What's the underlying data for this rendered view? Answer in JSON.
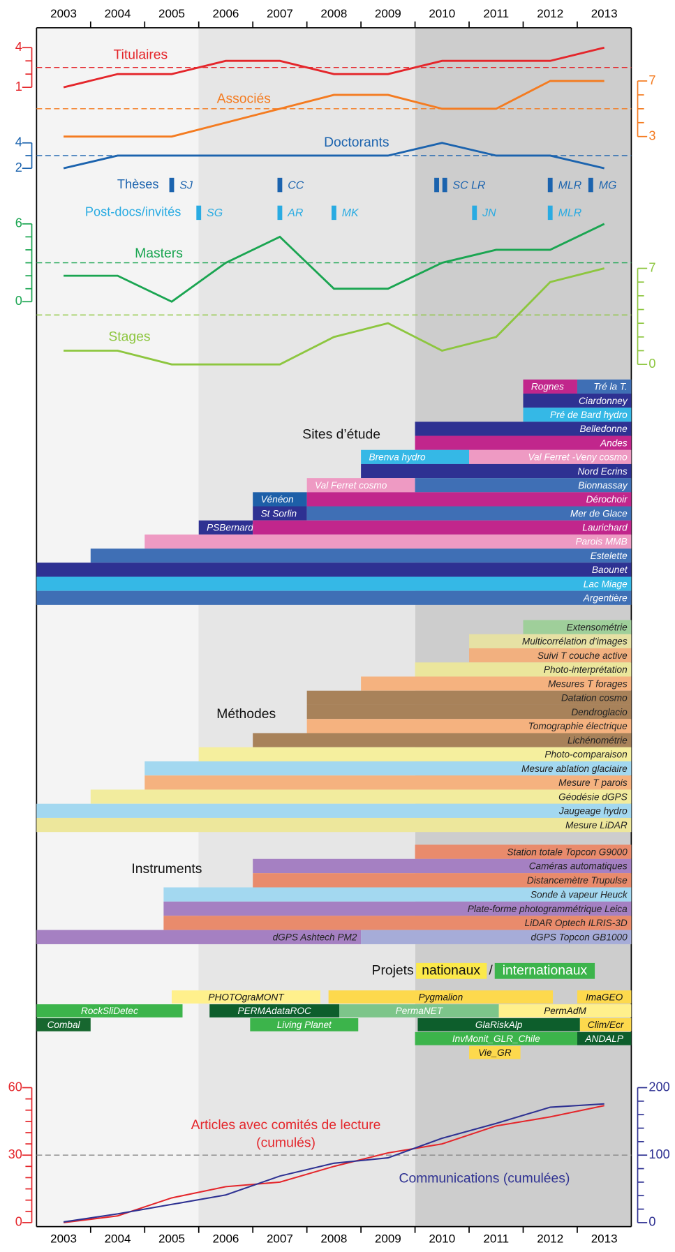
{
  "xaxis": {
    "xlim": [
      2002.5,
      2013.5
    ],
    "xticks": [
      2003,
      2004,
      2005,
      2006,
      2007,
      2008,
      2009,
      2010,
      2011,
      2012,
      2013
    ]
  },
  "staff": [
    {
      "name": "Titulaires",
      "color": "#e4262b",
      "axis": "left",
      "ylim": [
        1,
        4
      ],
      "yticks": [
        1,
        4
      ],
      "minor_yticks": [
        2,
        3
      ],
      "reference": 2.5,
      "values": [
        1,
        2,
        2,
        3,
        3,
        2,
        2,
        3,
        3,
        3,
        4
      ]
    },
    {
      "name": "Associés",
      "color": "#f47b20",
      "axis": "right",
      "ylim": [
        3,
        7
      ],
      "yticks": [
        3,
        7
      ],
      "minor_yticks": [
        4,
        5,
        6
      ],
      "reference": 5,
      "values": [
        3,
        3,
        3,
        4,
        5,
        6,
        6,
        5,
        5,
        7,
        7
      ]
    },
    {
      "name": "Doctorants",
      "color": "#1b63ae",
      "axis": "left",
      "ylim": [
        2,
        4
      ],
      "yticks": [
        2,
        4
      ],
      "minor_yticks": [
        3
      ],
      "reference": 3,
      "values": [
        2,
        3,
        3,
        3,
        3,
        3,
        3,
        4,
        3,
        3,
        2
      ]
    },
    {
      "name": "Masters",
      "color": "#1aa551",
      "axis": "left",
      "ylim": [
        0,
        6
      ],
      "yticks": [
        0,
        6
      ],
      "minor_yticks": [
        1,
        2,
        3,
        4,
        5
      ],
      "reference": 3,
      "values": [
        2,
        2,
        0,
        3,
        5,
        1,
        1,
        3,
        4,
        4,
        6
      ]
    },
    {
      "name": "Stages",
      "color": "#8dc63f",
      "axis": "right",
      "ylim": [
        0,
        7
      ],
      "yticks": [
        0,
        7
      ],
      "minor_yticks": [
        1,
        2,
        3,
        4,
        5,
        6
      ],
      "reference": 3.6,
      "values": [
        1,
        1,
        0,
        0,
        0,
        2,
        3,
        1,
        2,
        6,
        7
      ]
    }
  ],
  "markers": [
    {
      "name": "Thèses",
      "color": "#1b63ae",
      "items": [
        {
          "label": "SJ",
          "x": [
            2005
          ]
        },
        {
          "label": "CC",
          "x": [
            2007
          ]
        },
        {
          "label": "SC LR",
          "x": [
            2009.9,
            2010.05
          ]
        },
        {
          "label": "MLR",
          "x": [
            2012
          ]
        },
        {
          "label": "MG",
          "x": [
            2012.75
          ]
        }
      ]
    },
    {
      "name": "Post-docs/invités",
      "color": "#29abe2",
      "items": [
        {
          "label": "SG",
          "x": [
            2005.5
          ]
        },
        {
          "label": "AR",
          "x": [
            2007
          ]
        },
        {
          "label": "MK",
          "x": [
            2008
          ]
        },
        {
          "label": "JN",
          "x": [
            2010.6
          ]
        },
        {
          "label": "MLR",
          "x": [
            2012
          ]
        }
      ]
    }
  ],
  "sites": {
    "title": "Sites d’étude",
    "rows": [
      [
        {
          "label": "Rognes",
          "start": 2011.5,
          "end": 2012.5,
          "color": "#c1268c"
        },
        {
          "label": "Tré la T.",
          "start": 2012.5,
          "end": 2013.5,
          "color": "#3f6fb5"
        }
      ],
      [
        {
          "label": "Ciardonney",
          "start": 2011.5,
          "end": 2013.5,
          "color": "#2e3192"
        }
      ],
      [
        {
          "label": "Pré de Bard hydro",
          "start": 2011.5,
          "end": 2013.5,
          "color": "#35b8e6"
        }
      ],
      [
        {
          "label": "Belledonne",
          "start": 2009.5,
          "end": 2013.5,
          "color": "#2e3192"
        }
      ],
      [
        {
          "label": "Andes",
          "start": 2009.5,
          "end": 2013.5,
          "color": "#c1268c"
        }
      ],
      [
        {
          "label": "Brenva hydro",
          "start": 2008.5,
          "end": 2010.5,
          "color": "#35b8e6"
        },
        {
          "label": "Val Ferret -Veny cosmo",
          "start": 2010.5,
          "end": 2013.5,
          "color": "#ee9ac3"
        }
      ],
      [
        {
          "label": "Nord Ecrins",
          "start": 2008.5,
          "end": 2013.5,
          "color": "#2e3192"
        }
      ],
      [
        {
          "label": "Val Ferret cosmo",
          "start": 2007.5,
          "end": 2009.5,
          "color": "#ee9ac3"
        },
        {
          "label": "Bionnassay",
          "start": 2009.5,
          "end": 2013.5,
          "color": "#3f6fb5"
        }
      ],
      [
        {
          "label": "Vénéon",
          "start": 2006.5,
          "end": 2007.5,
          "color": "#1d5fa8"
        },
        {
          "label": "Dérochoir",
          "start": 2007.5,
          "end": 2013.5,
          "color": "#c1268c"
        }
      ],
      [
        {
          "label": "St Sorlin",
          "start": 2006.5,
          "end": 2007.5,
          "color": "#2e3192"
        },
        {
          "label": "Mer de Glace",
          "start": 2007.5,
          "end": 2013.5,
          "color": "#3f6fb5"
        }
      ],
      [
        {
          "label": "PSBernard",
          "start": 2005.5,
          "end": 2006.5,
          "color": "#2e3192"
        },
        {
          "label": "Laurichard",
          "start": 2006.5,
          "end": 2013.5,
          "color": "#c1268c"
        }
      ],
      [
        {
          "label": "Parois MMB",
          "start": 2004.5,
          "end": 2013.5,
          "color": "#ee9ac3"
        }
      ],
      [
        {
          "label": "Estelette",
          "start": 2003.5,
          "end": 2013.5,
          "color": "#3f6fb5"
        }
      ],
      [
        {
          "label": "Baounet",
          "start": 2002.5,
          "end": 2013.5,
          "color": "#2e3192"
        }
      ],
      [
        {
          "label": "Lac Miage",
          "start": 2002.5,
          "end": 2013.5,
          "color": "#35b8e6"
        }
      ],
      [
        {
          "label": "Argentière",
          "start": 2002.5,
          "end": 2013.5,
          "color": "#3f6fb5"
        }
      ]
    ]
  },
  "methods": {
    "title": "Méthodes",
    "rows": [
      [
        {
          "label": "Extensométrie",
          "start": 2011.5,
          "end": 2013.5,
          "color": "#9fcf9a"
        }
      ],
      [
        {
          "label": "Multicorrélation d’images",
          "start": 2010.5,
          "end": 2013.5,
          "color": "#e6e1a4"
        }
      ],
      [
        {
          "label": "Suivi T couche active",
          "start": 2010.5,
          "end": 2013.5,
          "color": "#f2b07f"
        }
      ],
      [
        {
          "label": "Photo-interprétation",
          "start": 2009.5,
          "end": 2013.5,
          "color": "#ebe69c"
        }
      ],
      [
        {
          "label": "Mesures T forages",
          "start": 2008.5,
          "end": 2013.5,
          "color": "#f5b27f"
        }
      ],
      [
        {
          "label": "Datation cosmo",
          "start": 2007.5,
          "end": 2013.5,
          "color": "#a8825a"
        }
      ],
      [
        {
          "label": "Dendroglacio",
          "start": 2007.5,
          "end": 2013.5,
          "color": "#a8825a"
        }
      ],
      [
        {
          "label": "Tomographie électrique",
          "start": 2007.5,
          "end": 2013.5,
          "color": "#f5b27f"
        }
      ],
      [
        {
          "label": "Lichénométrie",
          "start": 2006.5,
          "end": 2013.5,
          "color": "#a8825a"
        }
      ],
      [
        {
          "label": "Photo-comparaison",
          "start": 2005.5,
          "end": 2013.5,
          "color": "#f5ef9e"
        }
      ],
      [
        {
          "label": "Mesure ablation glaciaire",
          "start": 2004.5,
          "end": 2013.5,
          "color": "#a3d8f0"
        }
      ],
      [
        {
          "label": "Mesure T parois",
          "start": 2004.5,
          "end": 2013.5,
          "color": "#f5b27f"
        }
      ],
      [
        {
          "label": "Géodésie dGPS",
          "start": 2003.5,
          "end": 2013.5,
          "color": "#f2ec9e"
        }
      ],
      [
        {
          "label": "Jaugeage hydro",
          "start": 2002.5,
          "end": 2013.5,
          "color": "#a3d8f0"
        }
      ],
      [
        {
          "label": "Mesure LiDAR",
          "start": 2002.5,
          "end": 2013.5,
          "color": "#ede79c"
        }
      ]
    ]
  },
  "instruments": {
    "title": "Instruments",
    "rows": [
      [
        {
          "label": "Station totale Topcon G9000",
          "start": 2009.5,
          "end": 2013.5,
          "color": "#e98b6c"
        }
      ],
      [
        {
          "label": "Caméras automatiques",
          "start": 2006.5,
          "end": 2013.5,
          "color": "#a580c2"
        }
      ],
      [
        {
          "label": "Distancemètre Trupulse",
          "start": 2006.5,
          "end": 2013.5,
          "color": "#e98b6c"
        }
      ],
      [
        {
          "label": "Sonde à vapeur Heuck",
          "start": 2004.85,
          "end": 2013.5,
          "color": "#a3d8f0"
        }
      ],
      [
        {
          "label": "Plate-forme photogrammétrique Leica",
          "start": 2004.85,
          "end": 2013.5,
          "color": "#a580c2"
        }
      ],
      [
        {
          "label": "LiDAR Optech ILRIS-3D",
          "start": 2004.85,
          "end": 2013.5,
          "color": "#e98b6c"
        }
      ],
      [
        {
          "label": "dGPS Ashtech PM2",
          "start": 2002.5,
          "end": 2008.5,
          "color": "#a580c2"
        },
        {
          "label": "dGPS Topcon GB1000",
          "start": 2008.5,
          "end": 2013.5,
          "color": "#a6acd8"
        }
      ]
    ]
  },
  "projects": {
    "title": "Projets",
    "national": "nationaux",
    "separator": "/",
    "international": "internationaux",
    "national_color": "#fbe94a",
    "international_color": "#3cb44b",
    "rows": [
      [
        {
          "label": "PHOTOgraMONT",
          "start": 2005,
          "end": 2007.75,
          "color": "#fff08c"
        },
        {
          "label": "Pygmalion",
          "start": 2007.9,
          "end": 2012.05,
          "color": "#fdd94d"
        },
        {
          "label": "ImaGEO",
          "start": 2012.5,
          "end": 2013.5,
          "color": "#fdd94d"
        }
      ],
      [
        {
          "label": "RockSliDetec",
          "start": 2002.5,
          "end": 2005.2,
          "color": "#3cb44b"
        },
        {
          "label": "PERMAdataROC",
          "start": 2005.7,
          "end": 2008.1,
          "color": "#0d5e2c"
        },
        {
          "label": "PermaNET",
          "start": 2008.1,
          "end": 2011.05,
          "color": "#7dc58a"
        },
        {
          "label": "PermAdM",
          "start": 2011.05,
          "end": 2013.5,
          "color": "#fff08c"
        }
      ],
      [
        {
          "label": "Combal",
          "start": 2002.5,
          "end": 2003.5,
          "color": "#17672f"
        },
        {
          "label": "Living Planet",
          "start": 2006.45,
          "end": 2008.45,
          "color": "#3cb44b"
        },
        {
          "label": "GlaRiskAlp",
          "start": 2009.55,
          "end": 2012.55,
          "color": "#0d5e2c"
        },
        {
          "label": "Clim/Ecr",
          "start": 2012.55,
          "end": 2013.5,
          "color": "#fdd94d"
        }
      ],
      [
        {
          "label": "InvMonit_GLR_Chile",
          "start": 2009.5,
          "end": 2012.5,
          "color": "#3cb44b"
        },
        {
          "label": "ANDALP",
          "start": 2012.5,
          "end": 2013.5,
          "color": "#0d5e2c"
        }
      ],
      [
        {
          "label": "Vie_GR",
          "start": 2010.5,
          "end": 2011.45,
          "color": "#fdd94d"
        }
      ]
    ]
  },
  "publications": {
    "reference": 30,
    "series": [
      {
        "name_lines": [
          "Articles avec comités de lecture",
          "(cumulés)"
        ],
        "color": "#e4262b",
        "axis": "left",
        "ylim": [
          0,
          60
        ],
        "yticks": [
          0,
          30,
          60
        ],
        "minor_yticks": [
          5,
          10,
          15,
          20,
          25,
          35,
          40,
          45,
          50,
          55
        ],
        "values": [
          0,
          3,
          11,
          16,
          18,
          25,
          31,
          35,
          43,
          47,
          52
        ]
      },
      {
        "name_lines": [
          "Communications (cumulées)"
        ],
        "color": "#2e3192",
        "axis": "right",
        "ylim": [
          0,
          200
        ],
        "yticks": [
          0,
          100,
          200
        ],
        "minor_yticks": [
          20,
          40,
          60,
          80,
          120,
          140,
          160,
          180
        ],
        "values": [
          1,
          13,
          27,
          41,
          69,
          88,
          96,
          125,
          147,
          171,
          176
        ]
      }
    ]
  }
}
